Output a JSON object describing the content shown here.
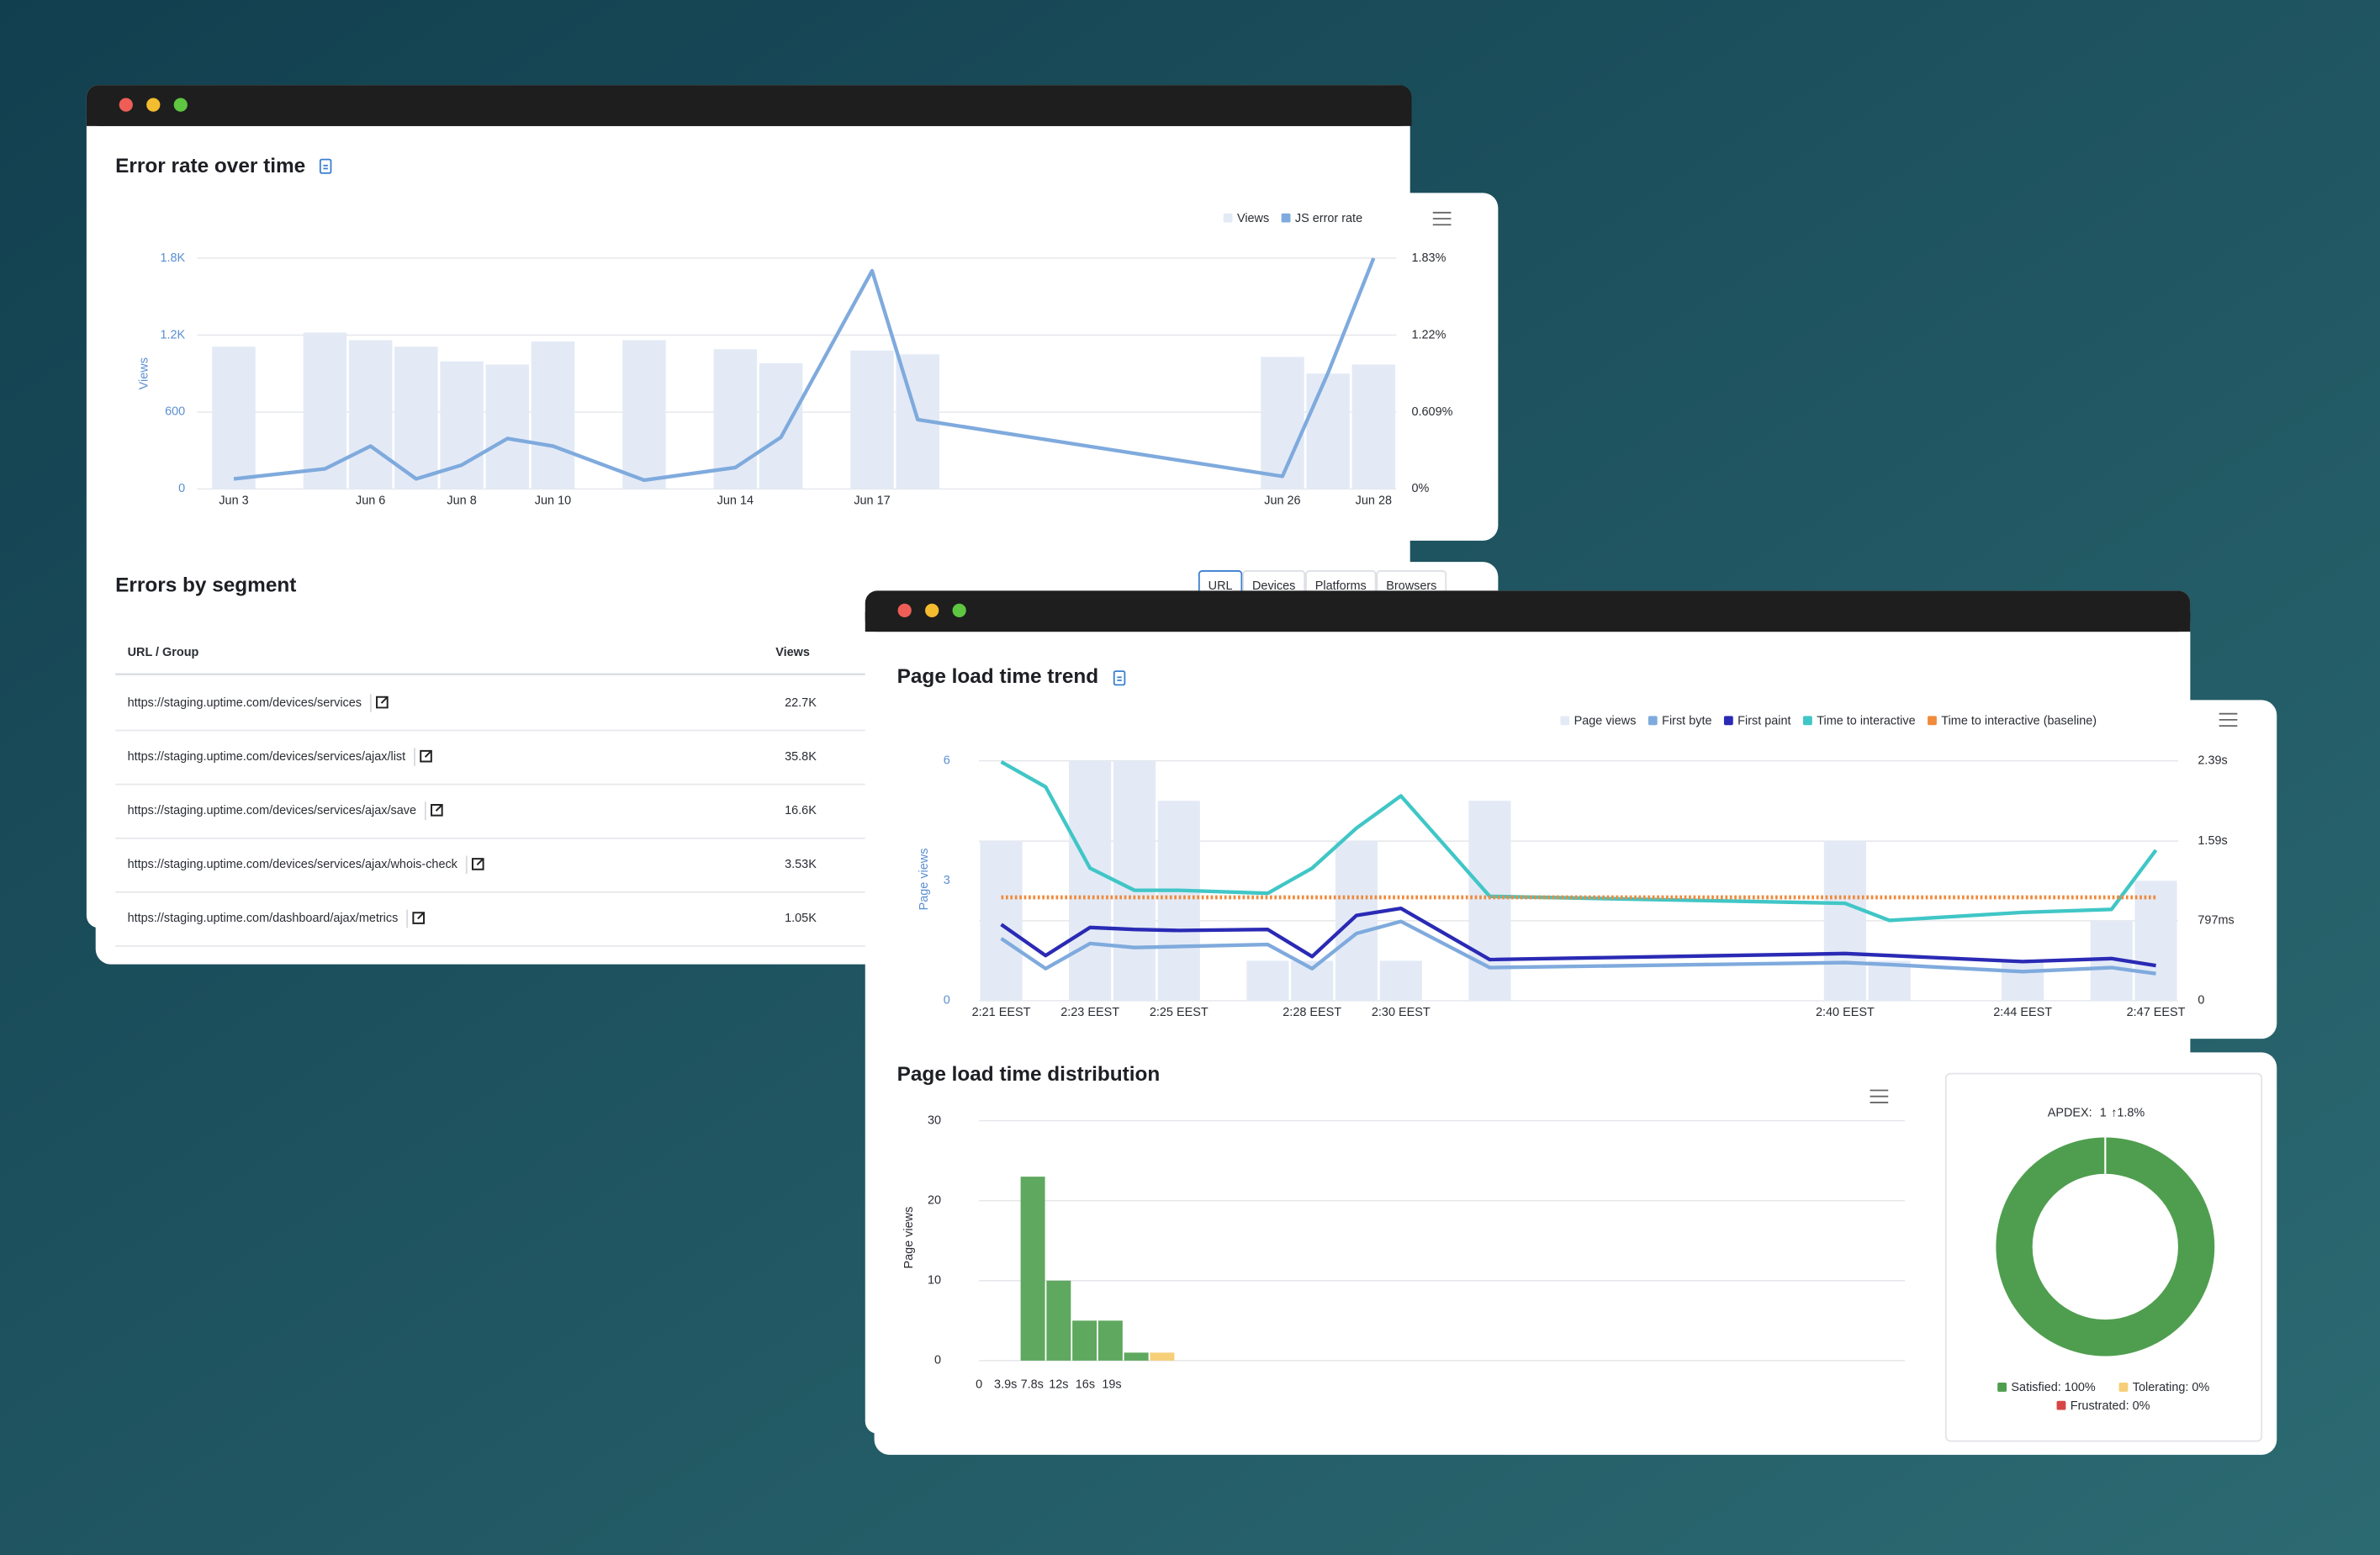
{
  "chart_data": [
    {
      "type": "combo",
      "title": "Error rate over time",
      "ylabel": "Views",
      "x": [
        3,
        5,
        6,
        7,
        8,
        9,
        10,
        12,
        14,
        15,
        17,
        18,
        26,
        27,
        28
      ],
      "xlim": [
        2.2,
        28.5
      ],
      "xticks": [
        {
          "value": 3,
          "label": "Jun 3"
        },
        {
          "value": 6,
          "label": "Jun 6"
        },
        {
          "value": 8,
          "label": "Jun 8"
        },
        {
          "value": 10,
          "label": "Jun 10"
        },
        {
          "value": 14,
          "label": "Jun 14"
        },
        {
          "value": 17,
          "label": "Jun 17"
        },
        {
          "value": 26,
          "label": "Jun 26"
        },
        {
          "value": 28,
          "label": "Jun 28"
        }
      ],
      "ylim": [
        0,
        1800
      ],
      "yticks": [
        0,
        600,
        {
          "value": 1200,
          "label": "1.2K"
        },
        {
          "value": 1800,
          "label": "1.8K"
        }
      ],
      "y2lim": [
        0,
        1.83
      ],
      "y2ticks": [
        {
          "value": 0,
          "label": "0%"
        },
        {
          "value": 0.609,
          "label": "0.609%"
        },
        {
          "value": 1.22,
          "label": "1.22%"
        },
        {
          "value": 1.83,
          "label": "1.83%"
        }
      ],
      "grid": true,
      "grid_axis": "y2",
      "series": [
        {
          "name": "Views",
          "kind": "bar",
          "color": "#e3eaf6",
          "values": [
            1110,
            1220,
            1160,
            1110,
            995,
            970,
            1150,
            1160,
            1090,
            980,
            1080,
            1050,
            1030,
            900,
            970
          ]
        },
        {
          "name": "JS error rate",
          "kind": "line",
          "axis": "y2",
          "color": "#7faadd",
          "values": [
            0.08,
            0.16,
            0.34,
            0.08,
            0.19,
            0.4,
            0.34,
            0.07,
            0.17,
            0.41,
            1.73,
            0.55,
            0.1,
            0.92,
            1.83
          ]
        }
      ]
    },
    {
      "type": "combo",
      "title": "Page load time trend",
      "ylabel": "Page views",
      "x": [
        21,
        22,
        23,
        24,
        25,
        27,
        28,
        29,
        30,
        32,
        40,
        41,
        44,
        46,
        47
      ],
      "xlim": [
        20.5,
        47.5
      ],
      "xticks": [
        {
          "value": 21,
          "label": "2:21 EEST"
        },
        {
          "value": 23,
          "label": "2:23 EEST"
        },
        {
          "value": 25,
          "label": "2:25 EEST"
        },
        {
          "value": 28,
          "label": "2:28 EEST"
        },
        {
          "value": 30,
          "label": "2:30 EEST"
        },
        {
          "value": 40,
          "label": "2:40 EEST"
        },
        {
          "value": 44,
          "label": "2:44 EEST"
        },
        {
          "value": 47,
          "label": "2:47 EEST"
        }
      ],
      "ylim": [
        0,
        6
      ],
      "yticks": [
        0,
        3,
        6
      ],
      "y2lim": [
        0,
        2.39
      ],
      "y2ticks": [
        0,
        {
          "value": 0.797,
          "label": "797ms"
        },
        {
          "value": 1.59,
          "label": "1.59s"
        },
        {
          "value": 2.39,
          "label": "2.39s"
        }
      ],
      "grid": true,
      "grid_axis": "y2",
      "series": [
        {
          "name": "Page views",
          "kind": "bar",
          "color": "#e3eaf6",
          "values": [
            4,
            null,
            6,
            6,
            5,
            1,
            1,
            4,
            1,
            5,
            4,
            1,
            1,
            2,
            3
          ]
        },
        {
          "name": "First byte",
          "kind": "line",
          "axis": "y2",
          "color": "#7faadd",
          "values": [
            0.62,
            0.32,
            0.57,
            0.53,
            0.54,
            0.56,
            0.32,
            0.67,
            0.79,
            0.33,
            0.38,
            0.36,
            0.29,
            0.33,
            0.27
          ]
        },
        {
          "name": "First paint",
          "kind": "line",
          "axis": "y2",
          "color": "#2a2ab5",
          "values": [
            0.76,
            0.45,
            0.73,
            0.71,
            0.7,
            0.71,
            0.44,
            0.85,
            0.92,
            0.41,
            0.47,
            0.45,
            0.39,
            0.42,
            0.35
          ]
        },
        {
          "name": "Time to interactive",
          "kind": "line",
          "axis": "y2",
          "color": "#40c6c6",
          "values": [
            2.38,
            2.13,
            1.32,
            1.1,
            1.1,
            1.07,
            1.32,
            1.72,
            2.04,
            1.04,
            0.97,
            0.8,
            0.88,
            0.91,
            1.5
          ]
        },
        {
          "name": "Time to interactive (baseline)",
          "kind": "line",
          "axis": "y2",
          "color": "#f08a3c",
          "style": "dotted",
          "values": [
            1.03,
            1.03,
            1.03,
            1.03,
            1.03,
            1.03,
            1.03,
            1.03,
            1.03,
            1.03,
            1.03,
            1.03,
            1.03,
            1.03,
            1.03
          ]
        }
      ]
    },
    {
      "type": "histogram",
      "title": "Page load time distribution",
      "ylabel": "Page views",
      "bins": [
        6,
        9.8,
        13.6,
        17.4,
        21.2,
        25,
        28.8
      ],
      "values": [
        23,
        10,
        5,
        5,
        1,
        1
      ],
      "colors": [
        "#5fa85f",
        "#5fa85f",
        "#5fa85f",
        "#5fa85f",
        "#5fa85f",
        "#f6cf78"
      ],
      "xlim": [
        0,
        136
      ],
      "xticks": [
        0,
        {
          "value": 3.9,
          "label": "3.9s"
        },
        {
          "value": 7.8,
          "label": "7.8s"
        },
        {
          "value": 11.7,
          "label": "12s"
        },
        {
          "value": 15.6,
          "label": "16s"
        },
        {
          "value": 19.5,
          "label": "19s"
        }
      ],
      "ylim": [
        0,
        30
      ],
      "yticks": [
        0,
        10,
        20,
        30
      ],
      "grid": true
    },
    {
      "type": "donut",
      "title": "APDEX:",
      "score": 1,
      "change": "↑1.8%",
      "values": [
        100,
        0,
        0
      ],
      "value_labels": [
        "Satisfied: 100%",
        "Tolerating: 0%",
        "Frustrated: 0%"
      ],
      "colors": [
        "#4f9e4f",
        "#f6cf78",
        "#d84545"
      ]
    }
  ],
  "segments": {
    "title": "Errors by segment",
    "tabs": [
      "URL",
      "Devices",
      "Platforms",
      "Browsers"
    ],
    "columns": [
      "URL / Group",
      "Views"
    ],
    "rows": [
      [
        "https://staging.uptime.com/devices/services",
        "22.7K"
      ],
      [
        "https://staging.uptime.com/devices/services/ajax/list",
        "35.8K"
      ],
      [
        "https://staging.uptime.com/devices/services/ajax/save",
        "16.6K"
      ],
      [
        "https://staging.uptime.com/devices/services/ajax/whois-check",
        "3.53K"
      ],
      [
        "https://staging.uptime.com/dashboard/ajax/metrics",
        "1.05K"
      ]
    ]
  }
}
